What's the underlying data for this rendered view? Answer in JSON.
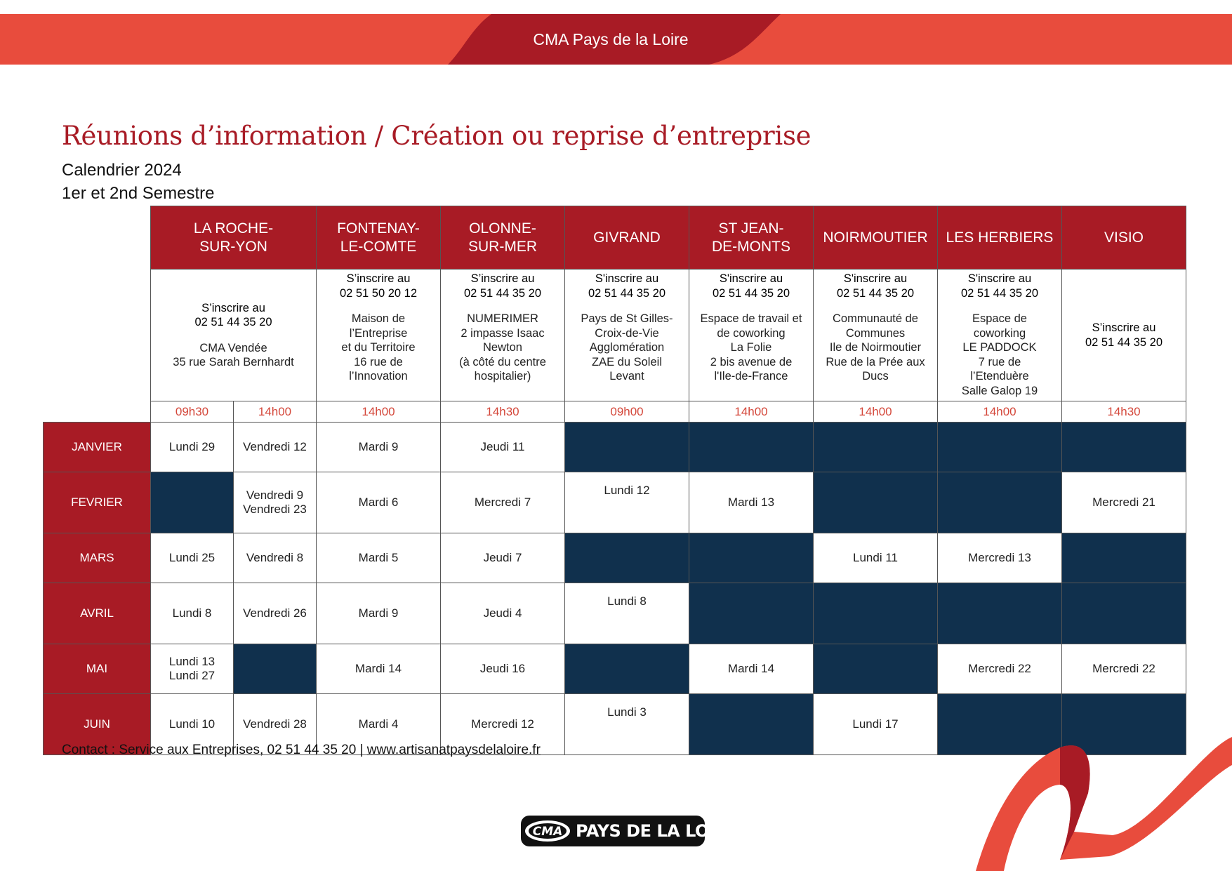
{
  "header": {
    "brand": "CMA Pays de la Loire"
  },
  "title": "Réunions d’information / Création ou reprise d’entreprise",
  "subtitle_line1": "Calendrier 2024",
  "subtitle_line2": "1er et 2nd Semestre",
  "colors": {
    "brand_red": "#a81b25",
    "banner_red": "#e84c3d",
    "navy": "#10304d",
    "time_red": "#d4473a"
  },
  "venues": [
    {
      "name": "LA ROCHE-\nSUR-YON",
      "info": [
        {
          "text": "S’inscrire au\n02 51 44 35 20",
          "reg": true
        },
        {
          "text": "CMA Vendée\n35 rue Sarah Bernhardt"
        }
      ],
      "align": "middle",
      "times": [
        "09h30",
        "14h00"
      ]
    },
    {
      "name": "FONTENAY-\nLE-COMTE",
      "info": [
        {
          "text": "S’inscrire au\n02 51 50 20 12",
          "reg": true
        },
        {
          "text": "Maison de\nl’Entreprise\net du Territoire\n16 rue de\nl’Innovation"
        }
      ],
      "align": "top",
      "times": [
        "14h00"
      ]
    },
    {
      "name": "OLONNE-\nSUR-MER",
      "info": [
        {
          "text": "S’inscrire au\n02 51 44 35 20",
          "reg": true
        },
        {
          "text": "NUMERIMER\n2 impasse Isaac\nNewton\n(à côté du centre\nhospitalier)"
        }
      ],
      "align": "top",
      "times": [
        "14h30"
      ]
    },
    {
      "name": "GIVRAND",
      "info": [
        {
          "text": "S'inscrire au\n02 51 44 35 20",
          "reg": true
        },
        {
          "text": "Pays de St Gilles-\nCroix-de-Vie\nAgglomération\nZAE du Soleil\nLevant"
        }
      ],
      "align": "top",
      "times": [
        "09h00"
      ]
    },
    {
      "name": "ST JEAN-\nDE-MONTS",
      "info": [
        {
          "text": "S'inscrire au\n02 51 44 35 20",
          "reg": true
        },
        {
          "text": "Espace de travail et\nde coworking\nLa Folie\n2 bis avenue de\nl'Ile-de-France"
        }
      ],
      "align": "top",
      "times": [
        "14h00"
      ]
    },
    {
      "name": "NOIRMOUTIER",
      "info": [
        {
          "text": "S'inscrire au\n02 51 44 35 20",
          "reg": true
        },
        {
          "text": "Communauté de\nCommunes\nIle de Noirmoutier\nRue de la Prée aux\nDucs"
        }
      ],
      "align": "top",
      "times": [
        "14h00"
      ]
    },
    {
      "name": "LES HERBIERS",
      "info": [
        {
          "text": "S'inscrire au\n02 51 44 35 20",
          "reg": true
        },
        {
          "text": "Espace de\ncoworking\nLE PADDOCK\n7 rue de\nl’Etenduère\nSalle Galop 19"
        }
      ],
      "align": "top",
      "times": [
        "14h00"
      ]
    },
    {
      "name": "VISIO",
      "info": [
        {
          "text": "S’inscrire au\n02 51 44 35 20",
          "reg": true
        }
      ],
      "align": "middle",
      "times": [
        "14h30"
      ]
    }
  ],
  "months": [
    {
      "name": "JANVIER",
      "cells": [
        "Lundi 29",
        "Vendredi 12",
        "Mardi 9",
        "Jeudi 11",
        null,
        null,
        null,
        null,
        null
      ]
    },
    {
      "name": "FEVRIER",
      "cells": [
        null,
        "Vendredi 9\nVendredi 23",
        "Mardi 6",
        "Mercredi 7",
        "Lundi 12",
        "Mardi 13",
        null,
        null,
        "Mercredi 21"
      ]
    },
    {
      "name": "MARS",
      "cells": [
        "Lundi 25",
        "Vendredi 8",
        "Mardi 5",
        "Jeudi 7",
        null,
        null,
        "Lundi 11",
        "Mercredi 13",
        null
      ]
    },
    {
      "name": "AVRIL",
      "cells": [
        "Lundi 8",
        "Vendredi 26",
        "Mardi 9",
        "Jeudi 4",
        "Lundi 8",
        null,
        null,
        null,
        null
      ]
    },
    {
      "name": "MAI",
      "cells": [
        "Lundi 13\nLundi 27",
        null,
        "Mardi 14",
        "Jeudi 16",
        null,
        "Mardi 14",
        null,
        "Mercredi 22",
        "Mercredi 22"
      ]
    },
    {
      "name": "JUIN",
      "cells": [
        "Lundi 10",
        "Vendredi 28",
        "Mardi 4",
        "Mercredi 12",
        "Lundi 3",
        null,
        "Lundi 17",
        null,
        null
      ]
    }
  ],
  "footer": {
    "contact": "Contact : Service aux Entreprises, 02 51 44 35 20 | ",
    "link": "www.artisanatpaysdelaloire.fr"
  },
  "logo": {
    "mark": "CMA",
    "text": "PAYS DE LA LOIRE"
  }
}
